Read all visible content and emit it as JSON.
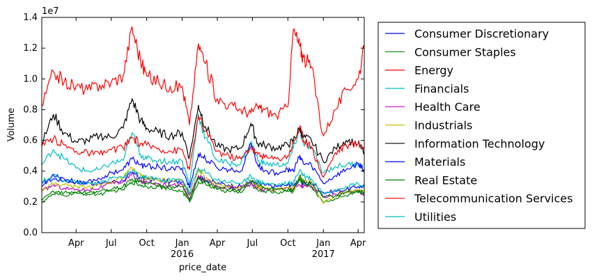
{
  "chart_data": {
    "type": "line",
    "title": "",
    "xlabel": "price_date",
    "ylabel": "Volume",
    "y_scale_label": "1e7",
    "ylim": [
      0,
      14000000
    ],
    "xlim": [
      "2015-01-02",
      "2017-04-17"
    ],
    "y_ticks": [
      0,
      2000000,
      4000000,
      6000000,
      8000000,
      10000000,
      12000000,
      14000000
    ],
    "y_tick_labels": [
      "0.0",
      "0.2",
      "0.4",
      "0.6",
      "0.8",
      "1.0",
      "1.2",
      "1.4"
    ],
    "x_ticks": [
      {
        "date": "2015-04-01",
        "label": "Apr",
        "year": ""
      },
      {
        "date": "2015-07-01",
        "label": "Jul",
        "year": ""
      },
      {
        "date": "2015-10-01",
        "label": "Oct",
        "year": ""
      },
      {
        "date": "2016-01-01",
        "label": "Jan",
        "year": "2016"
      },
      {
        "date": "2016-04-01",
        "label": "Apr",
        "year": ""
      },
      {
        "date": "2016-07-01",
        "label": "Jul",
        "year": ""
      },
      {
        "date": "2016-10-01",
        "label": "Oct",
        "year": ""
      },
      {
        "date": "2017-01-01",
        "label": "Jan",
        "year": "2017"
      },
      {
        "date": "2017-04-01",
        "label": "Apr",
        "year": ""
      }
    ],
    "grid": false,
    "legend_position": "outside-right",
    "x": [
      "2015-01-02",
      "2015-02-01",
      "2015-03-01",
      "2015-04-01",
      "2015-05-01",
      "2015-06-01",
      "2015-07-01",
      "2015-08-01",
      "2015-08-24",
      "2015-09-15",
      "2015-10-01",
      "2015-11-01",
      "2015-12-01",
      "2016-01-01",
      "2016-01-20",
      "2016-02-12",
      "2016-03-01",
      "2016-04-01",
      "2016-05-01",
      "2016-06-01",
      "2016-06-27",
      "2016-07-15",
      "2016-08-01",
      "2016-09-01",
      "2016-10-01",
      "2016-10-15",
      "2016-11-01",
      "2016-11-10",
      "2016-12-01",
      "2017-01-01",
      "2017-02-01",
      "2017-03-01",
      "2017-04-01",
      "2017-04-17"
    ],
    "series": [
      {
        "name": "Consumer Discretionary",
        "color": "#0000ff",
        "values": [
          3200000,
          3500000,
          3400000,
          3300000,
          3200000,
          3200000,
          3300000,
          3400000,
          3900000,
          3600000,
          3500000,
          3400000,
          3300000,
          3300000,
          2500000,
          3600000,
          3400000,
          3200000,
          3100000,
          3000000,
          3300000,
          3200000,
          3100000,
          3000000,
          3100000,
          3100000,
          3400000,
          3200000,
          3300000,
          2600000,
          2700000,
          2800000,
          3000000,
          3000000
        ]
      },
      {
        "name": "Consumer Staples",
        "color": "#008000",
        "values": [
          2000000,
          2500000,
          2400000,
          2600000,
          2500000,
          2500000,
          2700000,
          2800000,
          3300000,
          3100000,
          3000000,
          3000000,
          2800000,
          2700000,
          2000000,
          3300000,
          3200000,
          2800000,
          2700000,
          2600000,
          3200000,
          2800000,
          2700000,
          2600000,
          2700000,
          2700000,
          3500000,
          3200000,
          3000000,
          2000000,
          2200000,
          2400000,
          2600000,
          2500000
        ]
      },
      {
        "name": "Energy",
        "color": "#ff0000",
        "values": [
          8200000,
          10500000,
          9800000,
          9500000,
          9300000,
          9600000,
          9800000,
          10200000,
          13400000,
          11200000,
          10200000,
          9800000,
          9500000,
          9500000,
          7000000,
          12300000,
          11000000,
          8700000,
          8300000,
          8000000,
          7800000,
          8200000,
          8000000,
          7600000,
          8200000,
          13200000,
          12100000,
          11400000,
          10800000,
          6300000,
          8000000,
          9300000,
          10000000,
          12000000
        ]
      },
      {
        "name": "Financials",
        "color": "#00bfbf",
        "values": [
          4400000,
          5400000,
          4800000,
          4200000,
          4000000,
          4100000,
          4500000,
          4700000,
          6500000,
          5100000,
          4800000,
          4700000,
          4600000,
          4700000,
          3100000,
          7700000,
          6200000,
          4700000,
          4500000,
          4500000,
          5900000,
          4700000,
          4500000,
          4400000,
          4500000,
          5500000,
          6700000,
          5800000,
          5500000,
          3900000,
          4300000,
          4400000,
          4500000,
          4100000
        ]
      },
      {
        "name": "Health Care",
        "color": "#bf00bf",
        "values": [
          2700000,
          3100000,
          2900000,
          2800000,
          2800000,
          2900000,
          3200000,
          3300000,
          3800000,
          3300000,
          3300000,
          3200000,
          3100000,
          3100000,
          2200000,
          3700000,
          3400000,
          3000000,
          2900000,
          2900000,
          3200000,
          2900000,
          2800000,
          2800000,
          2900000,
          2900000,
          3100000,
          3000000,
          3000000,
          2300000,
          2500000,
          2600000,
          2700000,
          2500000
        ]
      },
      {
        "name": "Industrials",
        "color": "#bfbf00",
        "values": [
          2800000,
          3200000,
          3100000,
          3000000,
          3000000,
          3100000,
          3300000,
          3600000,
          4200000,
          3700000,
          3500000,
          3400000,
          3400000,
          3300000,
          2400000,
          4100000,
          3600000,
          3100000,
          3000000,
          2900000,
          3400000,
          3000000,
          2900000,
          2800000,
          2900000,
          2900000,
          3600000,
          3400000,
          3300000,
          1900000,
          2400000,
          2700000,
          2800000,
          2700000
        ]
      },
      {
        "name": "Information Technology",
        "color": "#000000",
        "values": [
          5800000,
          7700000,
          6500000,
          5900000,
          6000000,
          6300000,
          6200000,
          6800000,
          8700000,
          7300000,
          6800000,
          6500000,
          6300000,
          6500000,
          4900000,
          8300000,
          6900000,
          5600000,
          5400000,
          5500000,
          7100000,
          5800000,
          5700000,
          5500000,
          5700000,
          6000000,
          6800000,
          6200000,
          6000000,
          4600000,
          5500000,
          6000000,
          5800000,
          5200000
        ]
      },
      {
        "name": "Materials",
        "color": "#0000ff",
        "values": [
          3000000,
          3800000,
          3500000,
          3300000,
          3300000,
          3500000,
          3900000,
          4100000,
          4800000,
          4400000,
          4300000,
          4300000,
          4100000,
          4200000,
          2900000,
          5100000,
          4800000,
          4200000,
          4100000,
          4000000,
          5800000,
          4400000,
          4000000,
          3900000,
          4100000,
          4000000,
          5000000,
          4500000,
          4400000,
          3200000,
          3700000,
          4100000,
          4500000,
          4100000
        ]
      },
      {
        "name": "Real Estate",
        "color": "#008000",
        "values": [
          2100000,
          2700000,
          2600000,
          2600000,
          2600000,
          2700000,
          2800000,
          3000000,
          3500000,
          3300000,
          3200000,
          3100000,
          3000000,
          3000000,
          2100000,
          3600000,
          3300000,
          2900000,
          2800000,
          2800000,
          3400000,
          3100000,
          2900000,
          2800000,
          2800000,
          2800000,
          3700000,
          3300000,
          3100000,
          2300000,
          2400000,
          2600000,
          2700000,
          2600000
        ]
      },
      {
        "name": "Telecommunication Services",
        "color": "#ff0000",
        "values": [
          5600000,
          6100000,
          5700000,
          5300000,
          5200000,
          5100000,
          5400000,
          5500000,
          6200000,
          5800000,
          5700000,
          5500000,
          5300000,
          5400000,
          4100000,
          7600000,
          6600000,
          5300000,
          5000000,
          4800000,
          5600000,
          5100000,
          4900000,
          4800000,
          5000000,
          5800000,
          6900000,
          6000000,
          5600000,
          3600000,
          5200000,
          5700000,
          5800000,
          5500000
        ]
      },
      {
        "name": "Utilities",
        "color": "#00bfbf",
        "values": [
          3300000,
          3700000,
          3400000,
          3300000,
          3200000,
          3300000,
          3500000,
          3600000,
          4000000,
          3600000,
          3600000,
          3500000,
          3400000,
          3400000,
          2600000,
          4200000,
          3900000,
          3400000,
          3300000,
          3200000,
          3700000,
          3300000,
          3200000,
          3100000,
          3200000,
          3200000,
          4100000,
          3700000,
          3500000,
          2500000,
          2800000,
          3000000,
          3200000,
          2900000
        ]
      }
    ]
  }
}
